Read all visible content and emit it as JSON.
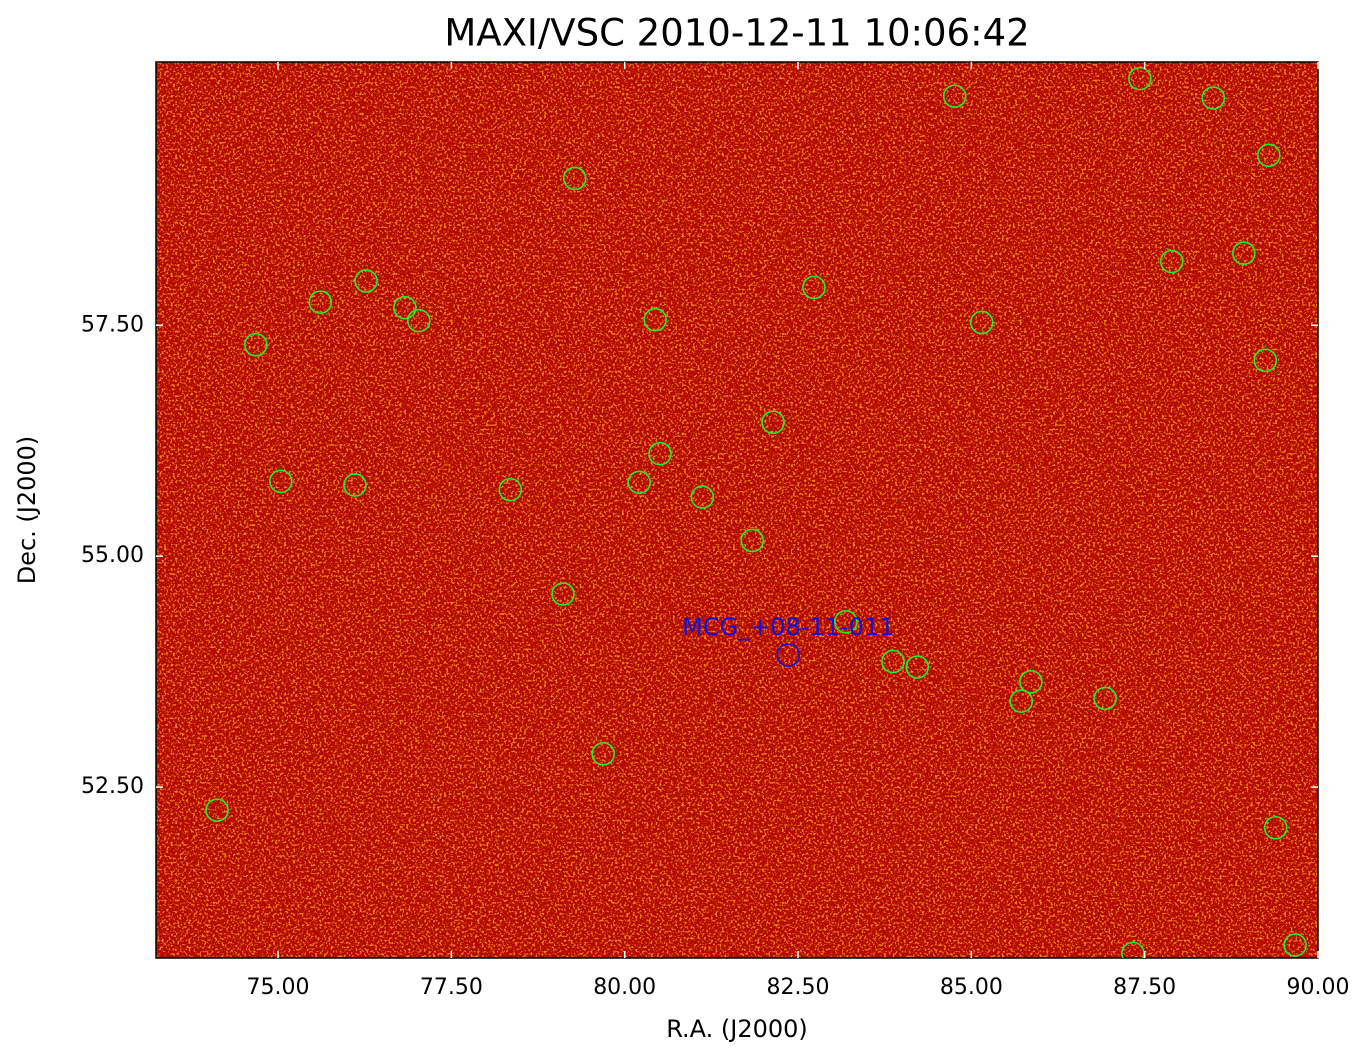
{
  "chart_data": {
    "type": "scatter",
    "title": "MAXI/VSC 2010-12-11 10:06:42",
    "xlabel": "R.A. (J2000)",
    "ylabel": "Dec. (J2000)",
    "xlim": [
      73.24,
      90
    ],
    "ylim": [
      50.65,
      60.35
    ],
    "xticks": [
      {
        "value": 75,
        "label": "75.00"
      },
      {
        "value": 77.5,
        "label": "77.50"
      },
      {
        "value": 80,
        "label": "80.00"
      },
      {
        "value": 82.5,
        "label": "82.50"
      },
      {
        "value": 85,
        "label": "85.00"
      },
      {
        "value": 87.5,
        "label": "87.50"
      },
      {
        "value": 90,
        "label": "90.00"
      }
    ],
    "yticks": [
      {
        "value": 52.5,
        "label": "52.50"
      },
      {
        "value": 55,
        "label": "55.00"
      },
      {
        "value": 57.5,
        "label": "57.50"
      }
    ],
    "color": "#22ee22",
    "x": [
      84.76,
      87.43,
      88.49,
      89.29,
      79.28,
      88.93,
      87.89,
      82.73,
      76.27,
      75.61,
      76.83,
      77.03,
      80.44,
      85.15,
      74.68,
      89.24,
      82.14,
      80.51,
      75.04,
      76.11,
      78.35,
      80.21,
      81.12,
      81.84,
      79.11,
      83.19,
      83.87,
      84.22,
      85.86,
      85.72,
      86.93,
      79.69,
      74.12,
      89.39,
      87.33,
      89.67
    ],
    "y": [
      59.98,
      60.17,
      59.96,
      59.34,
      59.09,
      58.28,
      58.19,
      57.91,
      57.98,
      57.75,
      57.69,
      57.55,
      57.56,
      57.53,
      57.29,
      57.12,
      56.45,
      56.11,
      55.81,
      55.77,
      55.72,
      55.8,
      55.64,
      55.17,
      54.59,
      54.29,
      53.86,
      53.8,
      53.64,
      53.43,
      53.46,
      52.86,
      52.25,
      52.06,
      50.7,
      50.79
    ],
    "target": {
      "label": "MCG_+08-11-011",
      "x": 82.36,
      "y": 53.93,
      "color": "#1010dd"
    }
  }
}
